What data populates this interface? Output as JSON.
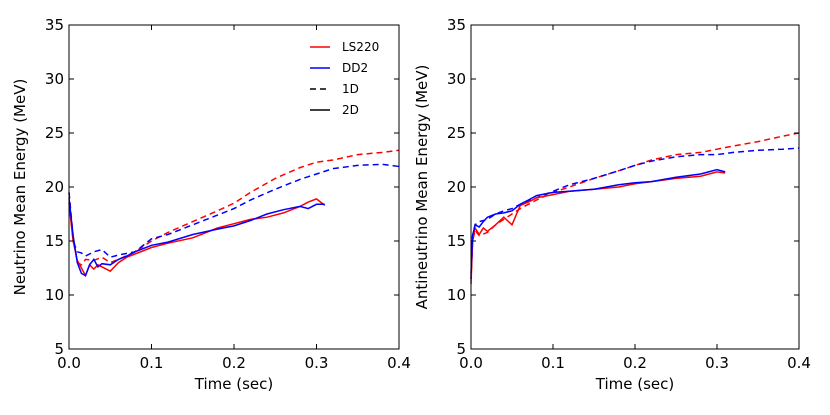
{
  "chart_data": [
    {
      "type": "line",
      "xlabel": "Time (sec)",
      "ylabel": "Neutrino Mean Energy (MeV)",
      "xlim": [
        0.0,
        0.4
      ],
      "ylim": [
        5,
        35
      ],
      "xticks": [
        "0.0",
        "0.1",
        "0.2",
        "0.3",
        "0.4"
      ],
      "yticks": [
        "5",
        "10",
        "15",
        "20",
        "25",
        "30",
        "35"
      ],
      "grid": false,
      "legend": {
        "placement": "top-right",
        "entries": [
          {
            "label": "LS220",
            "color": "#ff0000",
            "style": "solid"
          },
          {
            "label": "DD2",
            "color": "#0000ff",
            "style": "solid"
          },
          {
            "label": "1D",
            "color": "#000000",
            "style": "dashed"
          },
          {
            "label": "2D",
            "color": "#000000",
            "style": "solid"
          }
        ]
      },
      "series": [
        {
          "name": "LS220 1D",
          "color": "#ff0000",
          "dashed": true,
          "x": [
            0.0,
            0.005,
            0.01,
            0.015,
            0.02,
            0.03,
            0.04,
            0.05,
            0.06,
            0.08,
            0.1,
            0.12,
            0.15,
            0.18,
            0.2,
            0.22,
            0.25,
            0.28,
            0.3,
            0.32,
            0.35,
            0.38,
            0.4
          ],
          "y": [
            19.5,
            15.5,
            13.0,
            12.8,
            13.3,
            13.2,
            13.5,
            13.0,
            13.3,
            14.0,
            15.0,
            15.8,
            16.8,
            17.8,
            18.5,
            19.5,
            20.8,
            21.8,
            22.3,
            22.5,
            23.0,
            23.2,
            23.4
          ]
        },
        {
          "name": "DD2 1D",
          "color": "#0000ff",
          "dashed": true,
          "x": [
            0.0,
            0.005,
            0.01,
            0.015,
            0.02,
            0.03,
            0.04,
            0.05,
            0.06,
            0.08,
            0.1,
            0.12,
            0.15,
            0.18,
            0.2,
            0.22,
            0.25,
            0.28,
            0.3,
            0.32,
            0.35,
            0.38,
            0.4
          ],
          "y": [
            19.5,
            15.0,
            14.0,
            13.9,
            13.6,
            14.0,
            14.2,
            13.5,
            13.7,
            14.0,
            15.2,
            15.6,
            16.5,
            17.4,
            18.0,
            18.8,
            19.8,
            20.7,
            21.2,
            21.7,
            22.0,
            22.1,
            21.9
          ]
        },
        {
          "name": "LS220 2D",
          "color": "#ff0000",
          "dashed": false,
          "x": [
            0.0,
            0.005,
            0.01,
            0.015,
            0.02,
            0.025,
            0.03,
            0.035,
            0.04,
            0.05,
            0.06,
            0.07,
            0.08,
            0.1,
            0.12,
            0.15,
            0.18,
            0.2,
            0.22,
            0.24,
            0.26,
            0.28,
            0.29,
            0.3,
            0.31
          ],
          "y": [
            18.5,
            15.0,
            13.2,
            12.5,
            11.8,
            12.8,
            12.4,
            12.8,
            12.6,
            12.2,
            13.0,
            13.5,
            13.8,
            14.4,
            14.8,
            15.3,
            16.2,
            16.6,
            17.0,
            17.2,
            17.6,
            18.2,
            18.6,
            18.9,
            18.3
          ]
        },
        {
          "name": "DD2 2D",
          "color": "#0000ff",
          "dashed": false,
          "x": [
            0.0,
            0.005,
            0.01,
            0.015,
            0.02,
            0.025,
            0.03,
            0.035,
            0.04,
            0.05,
            0.06,
            0.07,
            0.08,
            0.1,
            0.12,
            0.15,
            0.18,
            0.2,
            0.22,
            0.24,
            0.26,
            0.28,
            0.29,
            0.3,
            0.31
          ],
          "y": [
            19.0,
            15.5,
            13.0,
            12.0,
            11.8,
            12.8,
            13.3,
            12.6,
            12.9,
            12.8,
            13.3,
            13.6,
            14.0,
            14.6,
            14.9,
            15.6,
            16.1,
            16.4,
            16.9,
            17.5,
            17.9,
            18.2,
            18.0,
            18.4,
            18.4
          ]
        }
      ]
    },
    {
      "type": "line",
      "xlabel": "Time (sec)",
      "ylabel": "Antineutrino Mean Energy (MeV)",
      "xlim": [
        0.0,
        0.4
      ],
      "ylim": [
        5,
        35
      ],
      "xticks": [
        "0.0",
        "0.1",
        "0.2",
        "0.3",
        "0.4"
      ],
      "yticks": [
        "5",
        "10",
        "15",
        "20",
        "25",
        "30",
        "35"
      ],
      "grid": false,
      "series": [
        {
          "name": "LS220 1D",
          "color": "#ff0000",
          "dashed": true,
          "x": [
            0.0,
            0.002,
            0.005,
            0.01,
            0.02,
            0.03,
            0.04,
            0.05,
            0.06,
            0.08,
            0.1,
            0.12,
            0.15,
            0.18,
            0.2,
            0.22,
            0.25,
            0.28,
            0.3,
            0.32,
            0.35,
            0.38,
            0.4
          ],
          "y": [
            11.5,
            15.0,
            16.0,
            15.5,
            15.8,
            16.5,
            17.0,
            17.5,
            18.0,
            18.8,
            19.5,
            20.0,
            20.8,
            21.5,
            22.0,
            22.5,
            23.0,
            23.2,
            23.5,
            23.8,
            24.2,
            24.7,
            25.0
          ]
        },
        {
          "name": "DD2 1D",
          "color": "#0000ff",
          "dashed": true,
          "x": [
            0.0,
            0.002,
            0.005,
            0.01,
            0.02,
            0.03,
            0.04,
            0.05,
            0.06,
            0.08,
            0.1,
            0.12,
            0.15,
            0.18,
            0.2,
            0.22,
            0.25,
            0.28,
            0.3,
            0.32,
            0.35,
            0.38,
            0.4
          ],
          "y": [
            11.5,
            15.5,
            16.5,
            16.8,
            17.0,
            17.5,
            17.8,
            18.0,
            18.4,
            19.0,
            19.6,
            20.2,
            20.8,
            21.5,
            22.0,
            22.4,
            22.8,
            23.0,
            23.0,
            23.2,
            23.4,
            23.5,
            23.6
          ]
        },
        {
          "name": "LS220 2D",
          "color": "#ff0000",
          "dashed": false,
          "x": [
            0.0,
            0.002,
            0.005,
            0.01,
            0.015,
            0.02,
            0.03,
            0.04,
            0.05,
            0.06,
            0.07,
            0.08,
            0.1,
            0.12,
            0.15,
            0.18,
            0.2,
            0.22,
            0.25,
            0.28,
            0.3,
            0.31
          ],
          "y": [
            11.0,
            15.0,
            16.2,
            15.6,
            16.2,
            15.9,
            16.5,
            17.2,
            16.5,
            18.3,
            18.6,
            19.0,
            19.3,
            19.6,
            19.8,
            20.0,
            20.3,
            20.5,
            20.8,
            21.0,
            21.4,
            21.3
          ]
        },
        {
          "name": "DD2 2D",
          "color": "#0000ff",
          "dashed": false,
          "x": [
            0.0,
            0.002,
            0.005,
            0.01,
            0.015,
            0.02,
            0.03,
            0.04,
            0.05,
            0.06,
            0.07,
            0.08,
            0.1,
            0.12,
            0.15,
            0.18,
            0.2,
            0.22,
            0.25,
            0.28,
            0.3,
            0.31
          ],
          "y": [
            12.0,
            15.5,
            16.5,
            16.3,
            16.8,
            17.2,
            17.5,
            17.6,
            17.8,
            18.4,
            18.8,
            19.2,
            19.5,
            19.6,
            19.8,
            20.2,
            20.4,
            20.5,
            20.9,
            21.2,
            21.6,
            21.4
          ]
        }
      ]
    }
  ]
}
